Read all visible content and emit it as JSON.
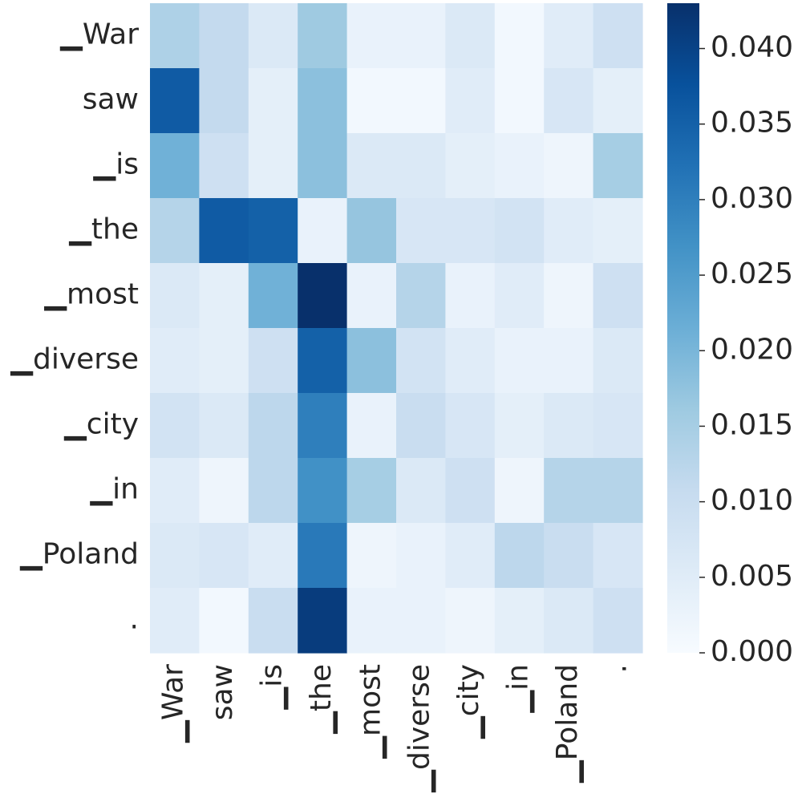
{
  "chart_data": {
    "type": "heatmap",
    "title": "",
    "xlabel": "",
    "ylabel": "",
    "x_labels": [
      "▁War",
      "saw",
      "▁is",
      "▁the",
      "▁most",
      "▁diverse",
      "▁city",
      "▁in",
      "▁Poland",
      "."
    ],
    "y_labels": [
      "▁War",
      "saw",
      "▁is",
      "▁the",
      "▁most",
      "▁diverse",
      "▁city",
      "▁in",
      "▁Poland",
      "."
    ],
    "values": [
      [
        0.014,
        0.011,
        0.006,
        0.016,
        0.003,
        0.003,
        0.006,
        0.001,
        0.005,
        0.009
      ],
      [
        0.036,
        0.011,
        0.004,
        0.018,
        0.001,
        0.001,
        0.005,
        0.001,
        0.007,
        0.004
      ],
      [
        0.021,
        0.009,
        0.004,
        0.018,
        0.006,
        0.006,
        0.004,
        0.003,
        0.002,
        0.015
      ],
      [
        0.013,
        0.036,
        0.035,
        0.003,
        0.017,
        0.007,
        0.007,
        0.008,
        0.005,
        0.004
      ],
      [
        0.006,
        0.004,
        0.021,
        0.043,
        0.003,
        0.013,
        0.003,
        0.005,
        0.002,
        0.009
      ],
      [
        0.005,
        0.004,
        0.009,
        0.035,
        0.018,
        0.008,
        0.005,
        0.003,
        0.003,
        0.006
      ],
      [
        0.008,
        0.006,
        0.012,
        0.03,
        0.003,
        0.01,
        0.007,
        0.004,
        0.006,
        0.007
      ],
      [
        0.005,
        0.002,
        0.012,
        0.027,
        0.015,
        0.006,
        0.009,
        0.002,
        0.013,
        0.013
      ],
      [
        0.006,
        0.007,
        0.005,
        0.031,
        0.002,
        0.003,
        0.005,
        0.012,
        0.01,
        0.007
      ],
      [
        0.005,
        0.001,
        0.01,
        0.041,
        0.003,
        0.003,
        0.002,
        0.004,
        0.006,
        0.009
      ]
    ],
    "colorbar": {
      "colormap": "Blues",
      "vmin": 0.0,
      "vmax": 0.043,
      "ticks": [
        0.0,
        0.005,
        0.01,
        0.015,
        0.02,
        0.025,
        0.03,
        0.035,
        0.04
      ],
      "tick_labels": [
        "0.000",
        "0.005",
        "0.010",
        "0.015",
        "0.020",
        "0.025",
        "0.030",
        "0.035",
        "0.040"
      ]
    },
    "grid": false,
    "legend": "colorbar-right"
  }
}
